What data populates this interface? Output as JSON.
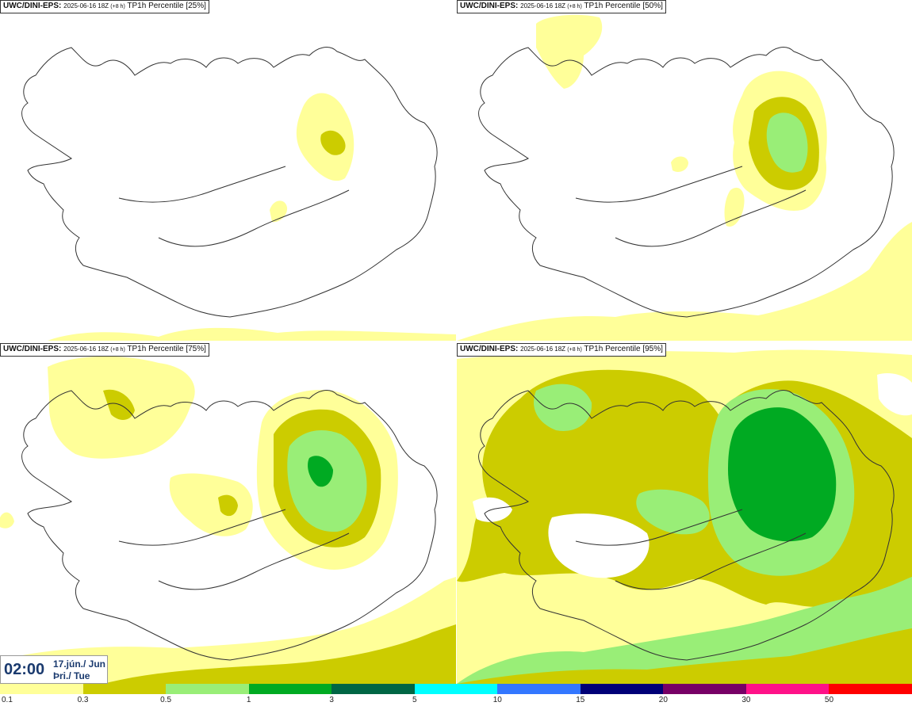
{
  "panels": [
    {
      "model": "UWC/DINI-EPS:",
      "run": "2025-06-16 18Z",
      "lead": "(+8 h)",
      "param": "TP1h Percentile [25%]"
    },
    {
      "model": "UWC/DINI-EPS:",
      "run": "2025-06-16 18Z",
      "lead": "(+8 h)",
      "param": "TP1h Percentile [50%]"
    },
    {
      "model": "UWC/DINI-EPS:",
      "run": "2025-06-16 18Z",
      "lead": "(+8 h)",
      "param": "TP1h Percentile [75%]"
    },
    {
      "model": "UWC/DINI-EPS:",
      "run": "2025-06-16 18Z",
      "lead": "(+8 h)",
      "param": "TP1h Percentile [95%]"
    }
  ],
  "valid_time": {
    "time": "02:00",
    "date_line1": "17.jún./ Jun",
    "date_line2": "Þri./ Tue"
  },
  "legend": {
    "labels": [
      "0.1",
      "0.3",
      "0.5",
      "1",
      "3",
      "5",
      "10",
      "15",
      "20",
      "30",
      "50"
    ],
    "colors": [
      "#ffff99",
      "#cccc00",
      "#99ee77",
      "#00aa22",
      "#006644",
      "#00ffff",
      "#3377ff",
      "#000077",
      "#770066",
      "#ff1188",
      "#ff0000"
    ]
  }
}
